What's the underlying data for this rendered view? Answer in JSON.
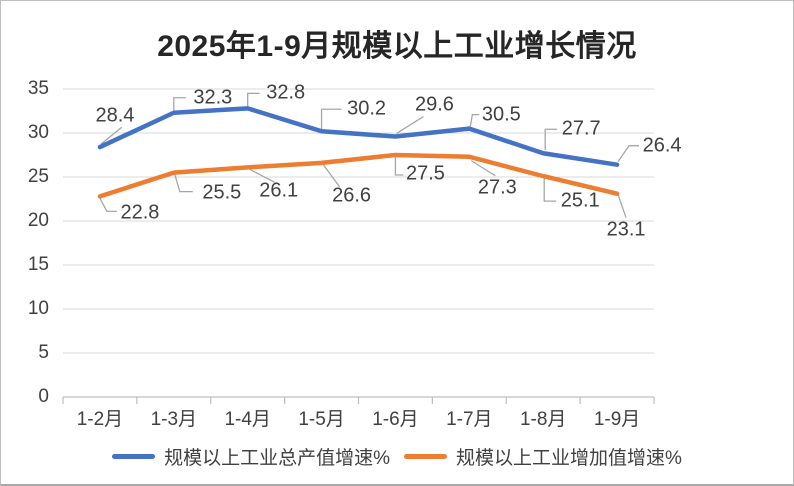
{
  "chart_data": {
    "type": "line",
    "title": "2025年1-9月规模以上工业增长情况",
    "categories": [
      "1-2月",
      "1-3月",
      "1-4月",
      "1-5月",
      "1-6月",
      "1-7月",
      "1-8月",
      "1-9月"
    ],
    "series": [
      {
        "name": "规模以上工业总产值增速%",
        "color": "#4472C4",
        "values": [
          28.4,
          32.3,
          32.8,
          30.2,
          29.6,
          30.5,
          27.7,
          26.4
        ]
      },
      {
        "name": "规模以上工业增加值增速%",
        "color": "#ED7D31",
        "values": [
          22.8,
          25.5,
          26.1,
          26.6,
          27.5,
          27.3,
          25.1,
          23.1
        ]
      }
    ],
    "ylim": [
      0,
      35
    ],
    "yticks": [
      0,
      5,
      10,
      15,
      20,
      25,
      30,
      35
    ],
    "grid": true,
    "data_labels": true,
    "legend_position": "bottom",
    "gridline_color": "#D9D9D9",
    "axis_line_color": "#BFBFBF",
    "leader_line_color": "#A6A6A6",
    "axis_text_color": "#404040",
    "title_color": "#262626"
  }
}
